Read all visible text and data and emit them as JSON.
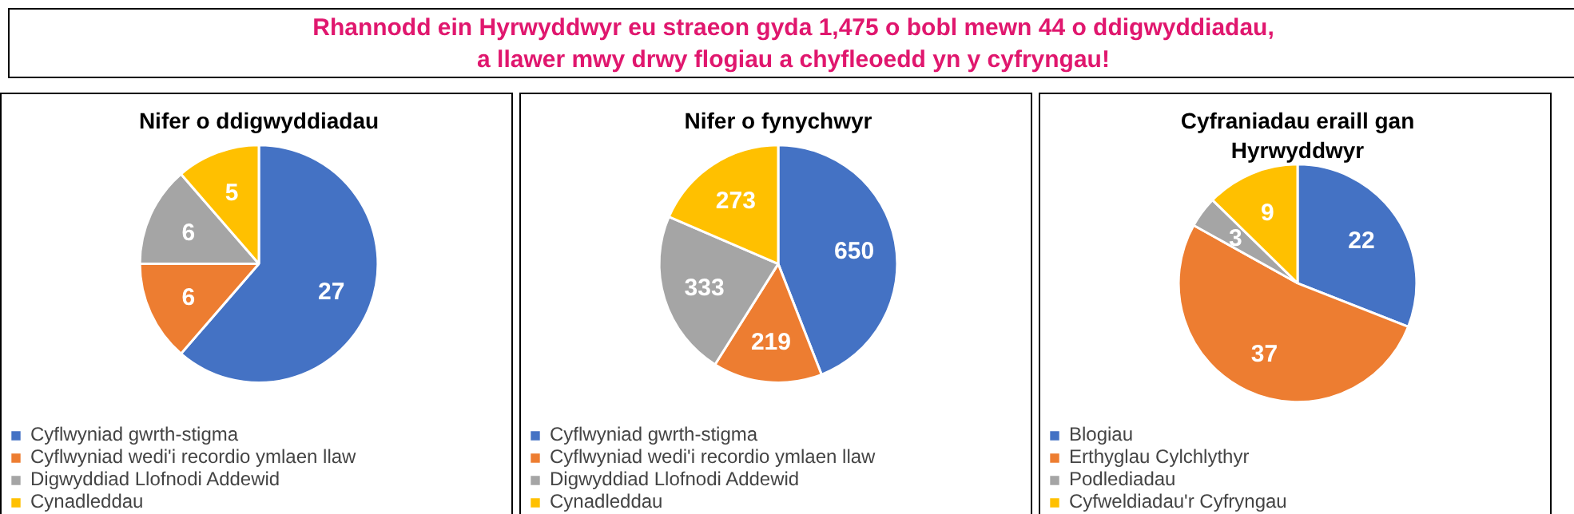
{
  "chart_data": [
    {
      "type": "other",
      "title": "Rhannodd ein Hyrwyddwyr eu straeon gyda 1,475 o bobl mewn 44 o ddigwyddiadau,\na llawer mwy drwy flogiau a chyfleoedd yn y cyfryngau!"
    },
    {
      "type": "pie",
      "title": "Nifer o ddigwyddiadau",
      "categories": [
        "Cyflwyniad gwrth-stigma",
        "Cyflwyniad wedi'i recordio ymlaen llaw",
        "Digwyddiad Llofnodi Addewid",
        "Cynadleddau"
      ],
      "values": [
        27,
        6,
        6,
        5
      ],
      "colors": [
        "#4472c4",
        "#ed7d31",
        "#a5a5a5",
        "#ffc000"
      ],
      "data_labels": true,
      "legend": "bottom"
    },
    {
      "type": "pie",
      "title": "Nifer o fynychwyr",
      "categories": [
        "Cyflwyniad gwrth-stigma",
        "Cyflwyniad wedi'i recordio ymlaen llaw",
        "Digwyddiad Llofnodi Addewid",
        "Cynadleddau"
      ],
      "values": [
        650,
        219,
        333,
        273
      ],
      "colors": [
        "#4472c4",
        "#ed7d31",
        "#a5a5a5",
        "#ffc000"
      ],
      "data_labels": true,
      "legend": "bottom"
    },
    {
      "type": "pie",
      "title": "Cyfraniadau eraill gan\nHyrwyddwyr",
      "categories": [
        "Blogiau",
        "Erthyglau Cylchlythyr",
        "Podlediadau",
        "Cyfweldiadau'r Cyfryngau"
      ],
      "values": [
        22,
        37,
        3,
        9
      ],
      "colors": [
        "#4472c4",
        "#ed7d31",
        "#a5a5a5",
        "#ffc000"
      ],
      "data_labels": true,
      "legend": "bottom"
    }
  ]
}
